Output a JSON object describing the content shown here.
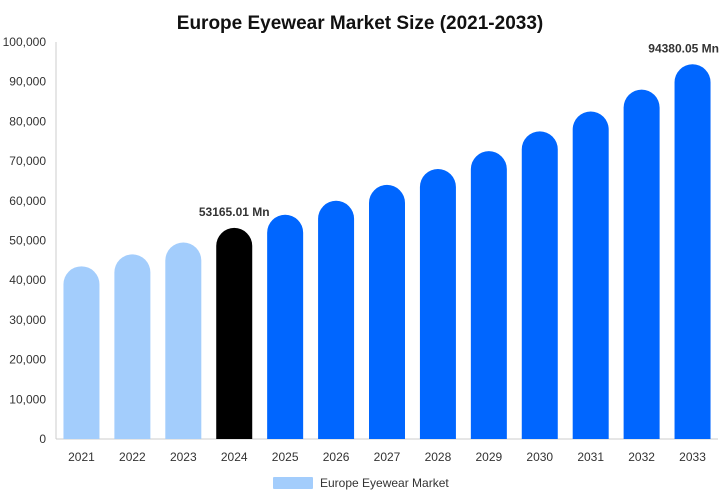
{
  "chart_data": {
    "type": "bar",
    "title": "Europe Eyewear Market Size (2021-2033)",
    "xlabel": "",
    "ylabel": "",
    "categories": [
      "2021",
      "2022",
      "2023",
      "2024",
      "2025",
      "2026",
      "2027",
      "2028",
      "2029",
      "2030",
      "2031",
      "2032",
      "2033"
    ],
    "series": [
      {
        "name": "Europe Eyewear Market",
        "values": [
          43500,
          46500,
          49500,
          53165.01,
          56500,
          60000,
          64000,
          68000,
          72500,
          77500,
          82500,
          88000,
          94380.05
        ]
      }
    ],
    "ylim": [
      0,
      100000
    ],
    "yticks": [
      "0",
      "10,000",
      "20,000",
      "30,000",
      "40,000",
      "50,000",
      "60,000",
      "70,000",
      "80,000",
      "90,000",
      "100,000"
    ],
    "data_labels": [
      {
        "index": 3,
        "text": "53165.01 Mn"
      },
      {
        "index": 12,
        "text": "94380.05 Mn"
      }
    ],
    "bar_colors": [
      "#a3cdfc",
      "#a3cdfc",
      "#a3cdfc",
      "#000000",
      "#0066ff",
      "#0066ff",
      "#0066ff",
      "#0066ff",
      "#0066ff",
      "#0066ff",
      "#0066ff",
      "#0066ff",
      "#0066ff"
    ],
    "grid": false,
    "legend_position": "bottom",
    "legend_swatch_color": "#a3cdfc",
    "axis_color": "#cccccc"
  }
}
